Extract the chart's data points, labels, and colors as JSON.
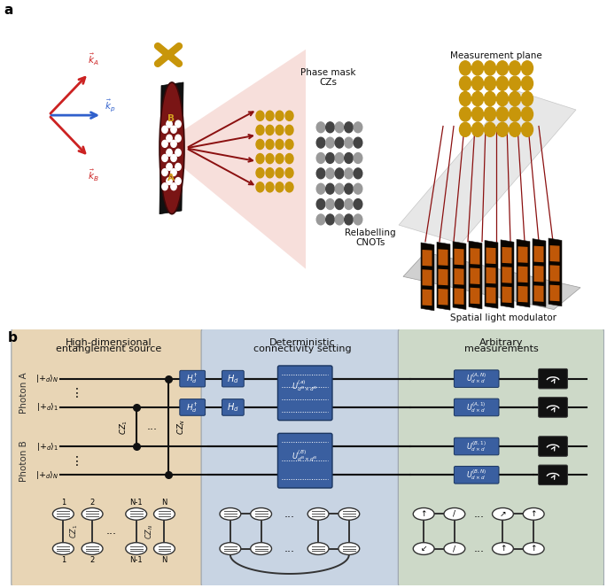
{
  "fig_width": 6.85,
  "fig_height": 6.64,
  "dpi": 100,
  "bg_color": "#ffffff",
  "panel_b": {
    "box1_color": "#e8d5b5",
    "box2_color": "#c8d4e3",
    "box3_color": "#cdd9c8",
    "box1_title_line1": "High-dimensional",
    "box1_title_line2": "entanglement source",
    "box2_title_line1": "Deterministic",
    "box2_title_line2": "connectivity setting",
    "box3_title_line1": "Arbitrary",
    "box3_title_line2": "measurements",
    "gate_color": "#3a5fa0",
    "gate_text_color": "#ffffff"
  }
}
